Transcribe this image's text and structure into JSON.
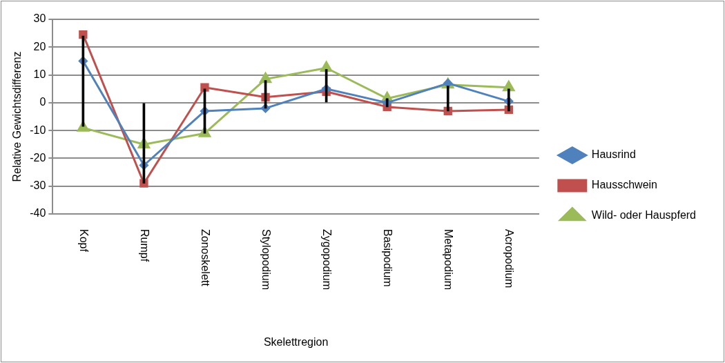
{
  "chart_data": {
    "type": "line",
    "xlabel": "Skelettregion",
    "ylabel": "Relative Gewichtsdifferenz",
    "categories": [
      "Kopf",
      "Rumpf",
      "Zonoskelett",
      "Stylopodium",
      "Zygopodium",
      "Basipodium",
      "Metapodium",
      "Acropodium"
    ],
    "series": [
      {
        "name": "Hausrind",
        "color": "#4f81bd",
        "marker": "diamond",
        "values": [
          15,
          -22.5,
          -3,
          -2,
          5,
          0,
          7,
          0.5
        ]
      },
      {
        "name": "Hausschwein",
        "color": "#c0504d",
        "marker": "square",
        "values": [
          24.5,
          -29,
          5.5,
          2,
          4,
          -1.5,
          -3,
          -2.5
        ]
      },
      {
        "name": "Wild- oder Hauspferd",
        "color": "#9bbb59",
        "marker": "triangle",
        "values": [
          -9,
          -15,
          -11,
          8.5,
          12.5,
          1.5,
          6.5,
          5.5
        ]
      },
      {
        "type": "bar",
        "color": "#000000",
        "base": [
          -8.5,
          -29,
          -11,
          -2,
          0,
          -1.5,
          -3,
          -3
        ],
        "values": [
          32.5,
          29,
          16,
          10,
          12,
          3,
          9,
          8
        ]
      }
    ],
    "ylim": [
      -40,
      30
    ],
    "yticks": [
      -40,
      -30,
      -20,
      -10,
      0,
      10,
      20,
      30
    ],
    "grid": "y",
    "legend": "right",
    "line_style": "solid"
  }
}
